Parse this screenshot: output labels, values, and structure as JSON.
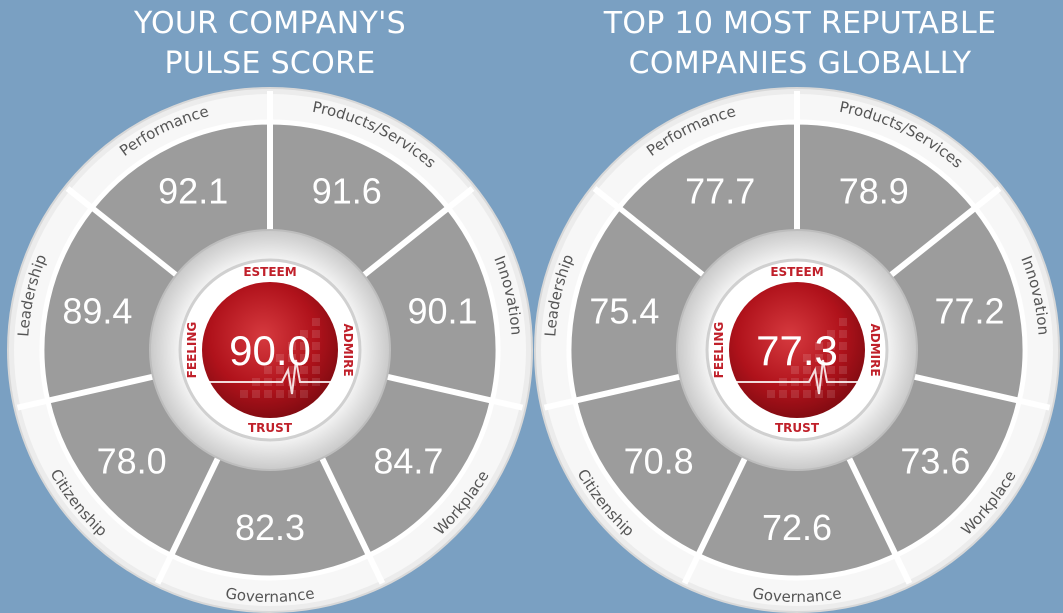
{
  "chart_data": [
    {
      "type": "radial-score",
      "title_line1": "YOUR COMPANY'S",
      "title_line2": "PULSE SCORE",
      "center": {
        "value": "90.0",
        "labels": [
          "ESTEEM",
          "ADMIRE",
          "TRUST",
          "FEELING"
        ]
      },
      "segments": [
        {
          "label": "Performance",
          "value": "92.1"
        },
        {
          "label": "Products/Services",
          "value": "91.6"
        },
        {
          "label": "Innovation",
          "value": "90.1"
        },
        {
          "label": "Workplace",
          "value": "84.7"
        },
        {
          "label": "Governance",
          "value": "82.3"
        },
        {
          "label": "Citizenship",
          "value": "78.0"
        },
        {
          "label": "Leadership",
          "value": "89.4"
        }
      ]
    },
    {
      "type": "radial-score",
      "title_line1": "TOP 10 MOST REPUTABLE",
      "title_line2": "COMPANIES GLOBALLY",
      "center": {
        "value": "77.3",
        "labels": [
          "ESTEEM",
          "ADMIRE",
          "TRUST",
          "FEELING"
        ]
      },
      "segments": [
        {
          "label": "Performance",
          "value": "77.7"
        },
        {
          "label": "Products/Services",
          "value": "78.9"
        },
        {
          "label": "Innovation",
          "value": "77.2"
        },
        {
          "label": "Workplace",
          "value": "73.6"
        },
        {
          "label": "Governance",
          "value": "72.6"
        },
        {
          "label": "Citizenship",
          "value": "70.8"
        },
        {
          "label": "Leadership",
          "value": "75.4"
        }
      ]
    }
  ],
  "colors": {
    "background": "#7aa0c2",
    "segment": "#9c9c9c",
    "outer_ring": "#ececec",
    "divider": "#ffffff",
    "center_red": "#b0121b",
    "center_label": "#c0202a",
    "ring_label": "#555555"
  }
}
